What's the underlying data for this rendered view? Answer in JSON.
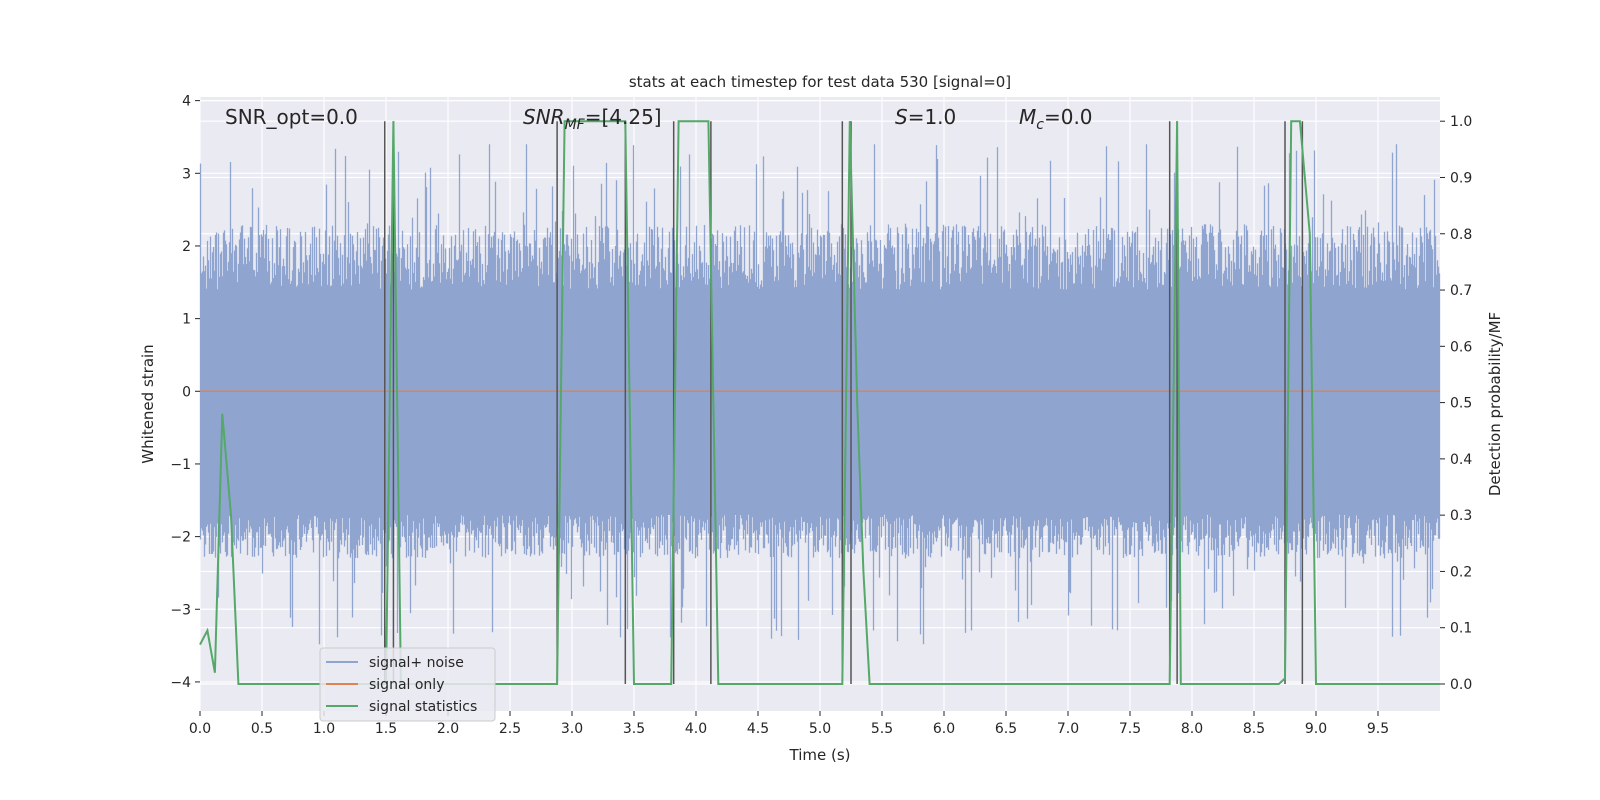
{
  "chart_data": {
    "type": "line",
    "title": "stats at each timestep for test data 530 [signal=0]",
    "xlabel": "Time (s)",
    "ylabel_left": "Whitened strain",
    "ylabel_right": "Detection probability/MF",
    "xlim": [
      0.0,
      10.0
    ],
    "ylim_left": [
      -4.4,
      4.05
    ],
    "ylim_right": [
      -0.048,
      1.043
    ],
    "grid": true,
    "legend_placement": "lower-left",
    "x_ticks": [
      "0.0",
      "0.5",
      "1.0",
      "1.5",
      "2.0",
      "2.5",
      "3.0",
      "3.5",
      "4.0",
      "4.5",
      "5.0",
      "5.5",
      "6.0",
      "6.5",
      "7.0",
      "7.5",
      "8.0",
      "8.5",
      "9.0",
      "9.5"
    ],
    "x_tick_values": [
      0.0,
      0.5,
      1.0,
      1.5,
      2.0,
      2.5,
      3.0,
      3.5,
      4.0,
      4.5,
      5.0,
      5.5,
      6.0,
      6.5,
      7.0,
      7.5,
      8.0,
      8.5,
      9.0,
      9.5
    ],
    "y_ticks_left": [
      "−4",
      "−3",
      "−2",
      "−1",
      "0",
      "1",
      "2",
      "3",
      "4"
    ],
    "y_tick_values_left": [
      -4,
      -3,
      -2,
      -1,
      0,
      1,
      2,
      3,
      4
    ],
    "y_ticks_right": [
      "0.0",
      "0.1",
      "0.2",
      "0.3",
      "0.4",
      "0.5",
      "0.6",
      "0.7",
      "0.8",
      "0.9",
      "1.0"
    ],
    "y_tick_values_right": [
      0.0,
      0.1,
      0.2,
      0.3,
      0.4,
      0.5,
      0.6,
      0.7,
      0.8,
      0.9,
      1.0
    ],
    "annotations": {
      "snr_opt": "SNR_opt=0.0",
      "snr_mf_italic": "SNR",
      "snr_mf_sub": "MF",
      "snr_mf_rest": "=[4.25]",
      "s_italic": "S",
      "s_rest": "=1.0",
      "mc_italic": "M",
      "mc_sub": "c",
      "mc_rest": "=0.0"
    },
    "series": [
      {
        "name": "signal+ noise",
        "color": "#8fa5d0",
        "description_kind": "noise",
        "x_range": [
          0.0,
          10.0
        ],
        "core_range": [
          -1.7,
          1.4
        ],
        "peak_range": [
          -3.5,
          3.4
        ]
      },
      {
        "name": "signal only",
        "color": "#dd8452",
        "x": [
          0.0,
          10.0
        ],
        "y": [
          0.0,
          0.0
        ]
      },
      {
        "name": "signal statistics",
        "color": "#55a868",
        "axis": "right",
        "x": [
          0.0,
          0.06,
          0.12,
          0.18,
          0.25,
          0.31,
          1.5,
          1.53,
          1.56,
          1.59,
          1.62,
          2.88,
          2.94,
          3.0,
          3.43,
          3.5,
          3.8,
          3.86,
          4.1,
          4.18,
          5.18,
          5.24,
          5.3,
          5.35,
          5.4,
          7.82,
          7.85,
          7.88,
          7.91,
          8.0,
          8.7,
          8.75,
          8.8,
          8.87,
          8.95,
          9.0,
          10.0
        ],
        "y": [
          0.07,
          0.095,
          0.02,
          0.48,
          0.3,
          0.0,
          0.0,
          0.5,
          1.0,
          0.5,
          0.0,
          0.0,
          1.0,
          1.0,
          1.0,
          0.0,
          0.0,
          1.0,
          1.0,
          0.0,
          0.0,
          1.0,
          0.5,
          0.2,
          0.0,
          0.0,
          0.5,
          1.0,
          0.0,
          0.0,
          0.0,
          0.01,
          1.0,
          1.0,
          0.8,
          0.0,
          0.0
        ]
      },
      {
        "name": "",
        "color": "#555555",
        "kind": "vertical-markers",
        "x": [
          1.49,
          1.56,
          2.88,
          3.43,
          3.82,
          4.12,
          5.18,
          5.25,
          7.82,
          7.88,
          8.75,
          8.89
        ]
      }
    ],
    "legend": [
      {
        "label": "signal+ noise",
        "color": "#8fa5d0"
      },
      {
        "label": "signal only",
        "color": "#dd8452"
      },
      {
        "label": "signal statistics",
        "color": "#55a868"
      }
    ]
  }
}
